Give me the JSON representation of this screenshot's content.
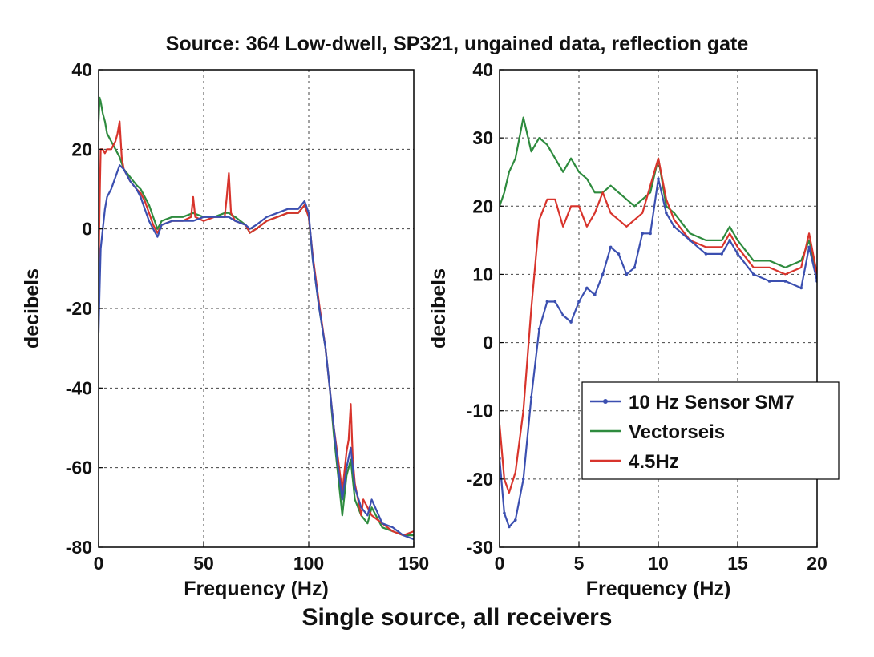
{
  "figure_title": "Source: 364 Low-dwell, SP321, ungained data, reflection gate",
  "caption": "Single source, all receivers",
  "colors": {
    "sensor": "#3b4fb0",
    "vectorseis": "#2e8b3e",
    "hz45": "#d8342c",
    "grid": "#444444",
    "axis": "#000000"
  },
  "chart_data": [
    {
      "type": "line",
      "title": "",
      "xlabel": "Frequency (Hz)",
      "ylabel": "decibels",
      "xlim": [
        0,
        150
      ],
      "ylim": [
        -80,
        40
      ],
      "xticks": [
        0,
        50,
        100,
        150
      ],
      "yticks": [
        40,
        20,
        0,
        -20,
        -40,
        -60,
        -80
      ],
      "xtick_labels": [
        "0",
        "50",
        "100",
        "150"
      ],
      "ytick_labels": [
        "40",
        "20",
        "0",
        "-20",
        "-40",
        "-60",
        "-80"
      ],
      "grid": true,
      "series": [
        {
          "key": "sensor",
          "x": [
            0,
            0.5,
            1,
            2,
            3,
            4,
            6,
            8,
            10,
            12,
            15,
            18,
            20,
            22,
            24,
            26,
            28,
            30,
            35,
            40,
            45,
            50,
            55,
            60,
            62,
            65,
            70,
            72,
            75,
            80,
            85,
            90,
            95,
            98,
            100,
            102,
            105,
            108,
            110,
            112,
            114,
            116,
            118,
            120,
            122,
            125,
            128,
            130,
            135,
            140,
            145,
            150
          ],
          "y": [
            -26,
            -15,
            -5,
            0,
            5,
            8,
            10,
            13,
            16,
            15,
            12,
            10,
            8,
            5,
            2,
            0,
            -2,
            1,
            2,
            2,
            2,
            3,
            3,
            3,
            3,
            2,
            1,
            0,
            1,
            3,
            4,
            5,
            5,
            7,
            4,
            -8,
            -20,
            -30,
            -40,
            -50,
            -60,
            -68,
            -60,
            -55,
            -65,
            -70,
            -72,
            -68,
            -74,
            -75,
            -77,
            -78
          ]
        },
        {
          "key": "vectorseis",
          "x": [
            0,
            0.5,
            1,
            2,
            3,
            4,
            6,
            8,
            10,
            12,
            15,
            18,
            20,
            22,
            24,
            26,
            28,
            30,
            35,
            40,
            45,
            50,
            55,
            60,
            62,
            65,
            70,
            72,
            75,
            80,
            85,
            90,
            95,
            98,
            100,
            102,
            105,
            108,
            110,
            112,
            114,
            116,
            118,
            120,
            122,
            125,
            128,
            130,
            135,
            140,
            145,
            150
          ],
          "y": [
            27,
            33,
            32,
            29,
            27,
            24,
            22,
            20,
            18,
            15,
            13,
            11,
            10,
            8,
            6,
            3,
            0,
            2,
            3,
            3,
            4,
            3,
            3,
            4,
            4,
            3,
            1,
            -1,
            0,
            2,
            3,
            4,
            4,
            6,
            3,
            -8,
            -20,
            -30,
            -40,
            -52,
            -62,
            -72,
            -62,
            -58,
            -68,
            -72,
            -74,
            -70,
            -75,
            -76,
            -77,
            -77
          ]
        },
        {
          "key": "hz45",
          "x": [
            0,
            0.3,
            0.7,
            1,
            2,
            3,
            4,
            6,
            8,
            9,
            10,
            11,
            12,
            15,
            18,
            20,
            22,
            24,
            26,
            28,
            30,
            35,
            40,
            44,
            45,
            46,
            50,
            55,
            60,
            61,
            62,
            63,
            65,
            70,
            72,
            75,
            80,
            85,
            90,
            95,
            98,
            100,
            102,
            105,
            108,
            110,
            112,
            114,
            116,
            118,
            119,
            120,
            121,
            122,
            125,
            126,
            128,
            130,
            135,
            140,
            145,
            150
          ],
          "y": [
            -14,
            0,
            12,
            20,
            20,
            19,
            20,
            20,
            22,
            24,
            27,
            18,
            15,
            12,
            10,
            9,
            7,
            4,
            1,
            -1,
            1,
            2,
            2,
            3,
            8,
            3,
            2,
            3,
            3,
            8,
            14,
            4,
            2,
            1,
            -1,
            0,
            2,
            3,
            4,
            4,
            6,
            3,
            -7,
            -19,
            -30,
            -40,
            -50,
            -58,
            -66,
            -56,
            -53,
            -44,
            -58,
            -64,
            -72,
            -68,
            -70,
            -72,
            -74,
            -76,
            -77,
            -76
          ]
        }
      ]
    },
    {
      "type": "line",
      "title": "",
      "xlabel": "Frequency (Hz)",
      "ylabel": "decibels",
      "xlim": [
        0,
        20
      ],
      "ylim": [
        -30,
        40
      ],
      "xticks": [
        0,
        5,
        10,
        15,
        20
      ],
      "yticks": [
        40,
        30,
        20,
        10,
        0,
        -10,
        -20,
        -30
      ],
      "xtick_labels": [
        "0",
        "5",
        "10",
        "15",
        "20"
      ],
      "ytick_labels": [
        "40",
        "30",
        "20",
        "10",
        "0",
        "-10",
        "-20",
        "-30"
      ],
      "grid": true,
      "legend": {
        "position": "center-right",
        "entries": [
          "10 Hz Sensor SM7",
          "Vectorseis",
          "4.5Hz"
        ]
      },
      "series": [
        {
          "key": "sensor",
          "name": "10 Hz Sensor SM7",
          "marker": "dot",
          "x": [
            0,
            0.3,
            0.6,
            1,
            1.5,
            2,
            2.5,
            3,
            3.5,
            4,
            4.5,
            5,
            5.5,
            6,
            6.5,
            7,
            7.5,
            8,
            8.5,
            9,
            9.5,
            10,
            10.5,
            11,
            12,
            13,
            14,
            14.5,
            15,
            16,
            17,
            18,
            19,
            19.5,
            20
          ],
          "y": [
            -17,
            -25,
            -27,
            -26,
            -20,
            -8,
            2,
            6,
            6,
            4,
            3,
            6,
            8,
            7,
            10,
            14,
            13,
            10,
            11,
            16,
            16,
            24,
            19,
            17,
            15,
            13,
            13,
            15,
            13,
            10,
            9,
            9,
            8,
            14,
            9
          ]
        },
        {
          "key": "vectorseis",
          "name": "Vectorseis",
          "x": [
            0,
            0.3,
            0.6,
            1,
            1.5,
            2,
            2.5,
            3,
            3.5,
            4,
            4.5,
            5,
            5.5,
            6,
            6.5,
            7,
            7.5,
            8,
            8.5,
            9,
            9.5,
            10,
            10.5,
            11,
            12,
            13,
            14,
            14.5,
            15,
            16,
            17,
            18,
            19,
            19.5,
            20
          ],
          "y": [
            20,
            22,
            25,
            27,
            33,
            28,
            30,
            29,
            27,
            25,
            27,
            25,
            24,
            22,
            22,
            23,
            22,
            21,
            20,
            21,
            22,
            27,
            20,
            19,
            16,
            15,
            15,
            17,
            15,
            12,
            12,
            11,
            12,
            15,
            10
          ]
        },
        {
          "key": "hz45",
          "name": "4.5Hz",
          "x": [
            0,
            0.3,
            0.6,
            1,
            1.5,
            2,
            2.5,
            3,
            3.5,
            4,
            4.5,
            5,
            5.5,
            6,
            6.5,
            7,
            7.5,
            8,
            8.5,
            9,
            9.5,
            10,
            10.5,
            11,
            12,
            13,
            14,
            14.5,
            15,
            16,
            17,
            18,
            19,
            19.5,
            20
          ],
          "y": [
            -12,
            -20,
            -22,
            -19,
            -10,
            5,
            18,
            21,
            21,
            17,
            20,
            20,
            17,
            19,
            22,
            19,
            18,
            17,
            18,
            19,
            23,
            27,
            21,
            18,
            15,
            14,
            14,
            16,
            14,
            11,
            11,
            10,
            11,
            16,
            10
          ]
        }
      ]
    }
  ]
}
